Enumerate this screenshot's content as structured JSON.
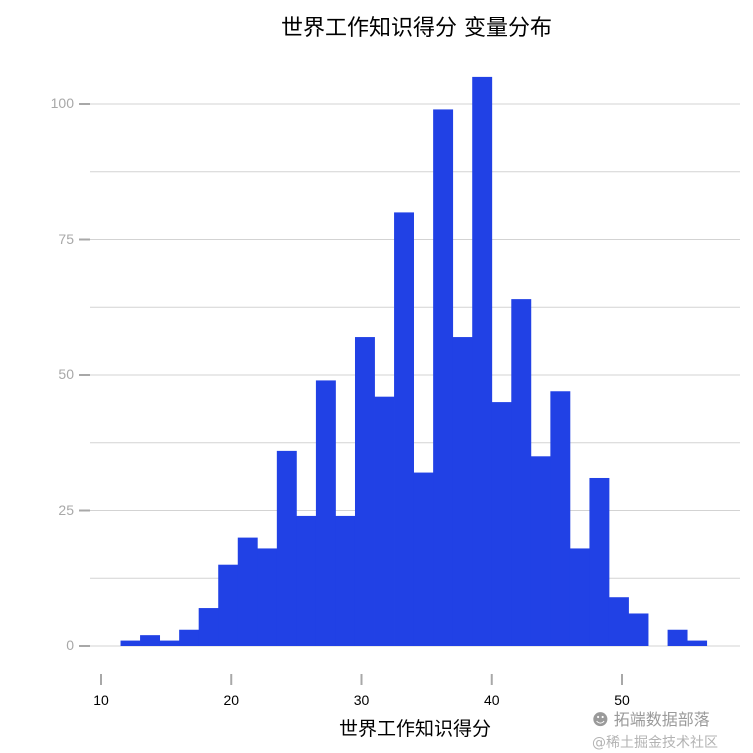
{
  "title": "世界工作知识得分 变量分布",
  "colors": {
    "bar": "#2141E5",
    "grid": "#d3d3d3",
    "axis_text_y": "#a8a8a8",
    "axis_text_x": "#000000"
  },
  "watermark": {
    "line1": "拓端数据部落",
    "line2": "@稀土掘金技术社区",
    "icon": "wechat-icon"
  },
  "chart_data": {
    "type": "bar",
    "title": "世界工作知识得分 变量分布",
    "xlabel": "世界工作知识得分",
    "ylabel": "",
    "xlim": [
      8.5,
      58
    ],
    "ylim": [
      0,
      108
    ],
    "x_ticks": [
      10,
      20,
      30,
      40,
      50
    ],
    "y_ticks": [
      0,
      25,
      50,
      75,
      100
    ],
    "grid": true,
    "legend": null,
    "bin_width": 1.5,
    "bin_starts": [
      11.5,
      13.0,
      14.5,
      16.0,
      17.5,
      19.0,
      20.5,
      22.0,
      23.5,
      25.0,
      26.5,
      28.0,
      29.5,
      31.0,
      32.5,
      34.0,
      35.5,
      37.0,
      38.5,
      40.0,
      41.5,
      43.0,
      44.5,
      46.0,
      47.5,
      49.0,
      50.5,
      52.0,
      53.5,
      55.0
    ],
    "values": [
      1,
      2,
      1,
      3,
      7,
      15,
      20,
      18,
      36,
      24,
      49,
      24,
      57,
      46,
      80,
      32,
      99,
      57,
      105,
      45,
      64,
      35,
      47,
      18,
      31,
      9,
      6,
      0,
      3,
      1
    ]
  }
}
